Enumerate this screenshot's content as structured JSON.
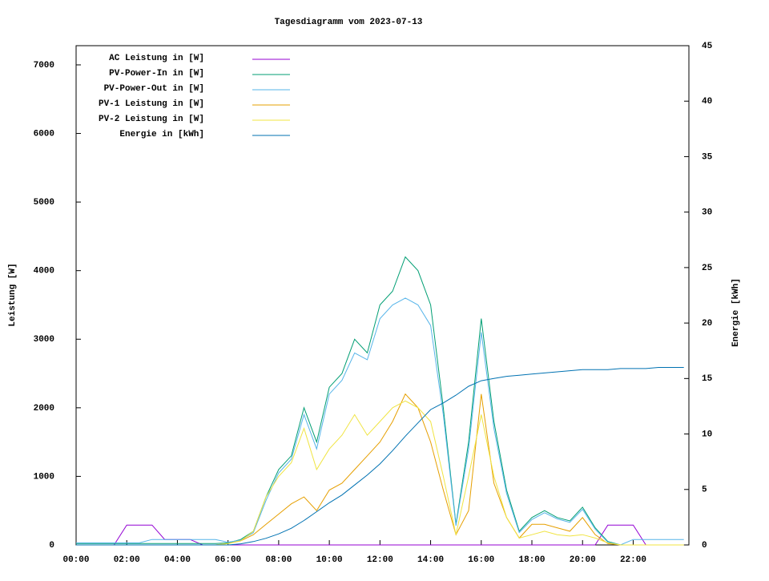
{
  "chart_data": {
    "type": "line",
    "title": "Tagesdiagramm vom 2023-07-13",
    "ylabel": "Leistung [W]",
    "y2label": "Energie [kWh]",
    "x": [
      0,
      0.5,
      1,
      1.5,
      2,
      2.5,
      3,
      3.5,
      4,
      4.5,
      5,
      5.5,
      6,
      6.5,
      7,
      7.5,
      8,
      8.5,
      9,
      9.5,
      10,
      10.5,
      11,
      11.5,
      12,
      12.5,
      13,
      13.5,
      14,
      14.5,
      15,
      15.5,
      16,
      16.5,
      17,
      17.5,
      18,
      18.5,
      19,
      19.5,
      20,
      20.5,
      21,
      21.5,
      22,
      22.5,
      23,
      23.5,
      24
    ],
    "xlim": [
      0,
      24.2
    ],
    "xticks": [
      {
        "value": 0,
        "label": "00:00"
      },
      {
        "value": 2,
        "label": "02:00"
      },
      {
        "value": 4,
        "label": "04:00"
      },
      {
        "value": 6,
        "label": "06:00"
      },
      {
        "value": 8,
        "label": "08:00"
      },
      {
        "value": 10,
        "label": "10:00"
      },
      {
        "value": 12,
        "label": "12:00"
      },
      {
        "value": 14,
        "label": "14:00"
      },
      {
        "value": 16,
        "label": "16:00"
      },
      {
        "value": 18,
        "label": "18:00"
      },
      {
        "value": 20,
        "label": "20:00"
      },
      {
        "value": 22,
        "label": "22:00"
      }
    ],
    "ylim": [
      0,
      7280
    ],
    "yticks": [
      0,
      1000,
      2000,
      3000,
      4000,
      5000,
      6000,
      7000
    ],
    "y2lim": [
      0,
      45
    ],
    "y2ticks": [
      0,
      5,
      10,
      15,
      20,
      25,
      30,
      35,
      40,
      45
    ],
    "series": [
      {
        "name": "AC Leistung in [W]",
        "color": "#9400d3",
        "values": [
          0,
          0,
          0,
          0,
          290,
          290,
          290,
          80,
          80,
          80,
          0,
          0,
          0,
          0,
          0,
          0,
          0,
          0,
          0,
          0,
          0,
          0,
          0,
          0,
          0,
          0,
          0,
          0,
          0,
          0,
          0,
          0,
          0,
          0,
          0,
          0,
          0,
          0,
          0,
          0,
          0,
          0,
          290,
          290,
          290,
          0,
          0,
          0,
          0
        ]
      },
      {
        "name": "PV-Power-In in [W]",
        "color": "#009e73",
        "values": [
          20,
          20,
          20,
          20,
          20,
          20,
          20,
          20,
          20,
          20,
          20,
          20,
          30,
          80,
          200,
          700,
          1100,
          1300,
          2000,
          1500,
          2300,
          2500,
          3000,
          2800,
          3500,
          3700,
          4200,
          4000,
          3500,
          2000,
          300,
          1500,
          3300,
          1800,
          800,
          200,
          400,
          500,
          400,
          350,
          550,
          250,
          50,
          0,
          0,
          0,
          0,
          0,
          0
        ]
      },
      {
        "name": "PV-Power-Out in [W]",
        "color": "#56b4e9",
        "values": [
          30,
          30,
          30,
          30,
          30,
          30,
          80,
          80,
          80,
          80,
          80,
          80,
          40,
          70,
          180,
          650,
          1050,
          1250,
          1900,
          1400,
          2200,
          2400,
          2800,
          2700,
          3300,
          3500,
          3600,
          3500,
          3200,
          1900,
          280,
          1400,
          3100,
          1700,
          750,
          180,
          370,
          470,
          380,
          330,
          520,
          230,
          40,
          0,
          80,
          80,
          80,
          80,
          80
        ]
      },
      {
        "name": "PV-1 Leistung in [W]",
        "color": "#e69f00",
        "values": [
          0,
          0,
          0,
          0,
          0,
          0,
          0,
          0,
          0,
          0,
          0,
          0,
          20,
          60,
          150,
          300,
          450,
          600,
          700,
          500,
          800,
          900,
          1100,
          1300,
          1500,
          1800,
          2200,
          2000,
          1500,
          800,
          150,
          500,
          2200,
          900,
          400,
          100,
          300,
          300,
          250,
          200,
          400,
          150,
          20,
          0,
          0,
          0,
          0,
          0,
          0
        ]
      },
      {
        "name": "PV-2 Leistung in [W]",
        "color": "#f0e442",
        "values": [
          0,
          0,
          0,
          0,
          0,
          0,
          0,
          0,
          0,
          0,
          0,
          0,
          20,
          60,
          200,
          700,
          1000,
          1200,
          1700,
          1100,
          1400,
          1600,
          1900,
          1600,
          1800,
          2000,
          2100,
          2000,
          1800,
          1000,
          150,
          1000,
          1900,
          1000,
          400,
          100,
          150,
          200,
          150,
          130,
          150,
          100,
          30,
          0,
          0,
          0,
          0,
          0,
          0
        ]
      },
      {
        "name": "Energie in [kWh]",
        "color": "#0072b2",
        "axis": "y2",
        "values": [
          0,
          0,
          0,
          0,
          0,
          0,
          0,
          0,
          0,
          0,
          0,
          0,
          0,
          0.1,
          0.3,
          0.6,
          1,
          1.5,
          2.2,
          3,
          3.8,
          4.5,
          5.4,
          6.3,
          7.3,
          8.5,
          9.8,
          11,
          12.2,
          12.8,
          13.5,
          14.3,
          14.8,
          15,
          15.2,
          15.3,
          15.4,
          15.5,
          15.6,
          15.7,
          15.8,
          15.8,
          15.8,
          15.9,
          15.9,
          15.9,
          16,
          16,
          16
        ]
      }
    ]
  }
}
